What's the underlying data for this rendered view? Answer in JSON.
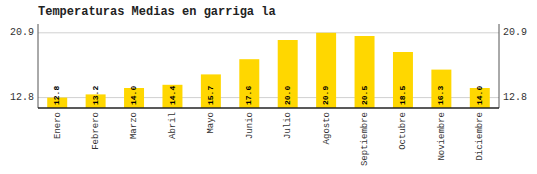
{
  "chart_data": {
    "type": "bar",
    "title": "Temperaturas Medias en garriga la",
    "categories": [
      "Enero",
      "Febrero",
      "Marzo",
      "Abril",
      "Mayo",
      "Junio",
      "Julio",
      "Agosto",
      "Septiembre",
      "Octubre",
      "Noviembre",
      "Diciembre"
    ],
    "values": [
      12.8,
      13.2,
      14.0,
      14.4,
      15.7,
      17.6,
      20.0,
      20.9,
      20.5,
      18.5,
      16.3,
      14.0
    ],
    "value_labels": [
      "12.8",
      "13.2",
      "14.0",
      "14.4",
      "15.7",
      "17.6",
      "20.0",
      "20.9",
      "20.5",
      "18.5",
      "16.3",
      "14.0"
    ],
    "color": "#FFD700",
    "ylim": [
      11.5,
      22.0
    ],
    "yticks": [
      12.8,
      20.9
    ],
    "grid": true,
    "data_labels": true
  }
}
